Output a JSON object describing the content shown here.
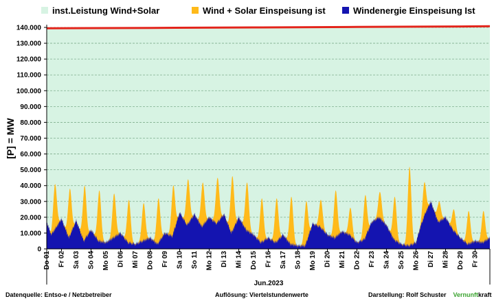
{
  "colors": {
    "installed_fill": "#d7f3e3",
    "installed_line": "#e3241b",
    "wind_solar": "#ffba1a",
    "wind": "#1414b0",
    "grid": "#7fae8e",
    "brand_green": "#3aa32f"
  },
  "legend": [
    {
      "label": "inst.Leistung Wind+Solar",
      "color": "#d7f3e3"
    },
    {
      "label": "Wind + Solar Einspeisung ist",
      "color": "#ffba1a"
    },
    {
      "label": "Windenergie Einspeisung Ist",
      "color": "#1414b0"
    }
  ],
  "footer": {
    "source": "Datenquelle:  Entso-e  / Netzbetreiber",
    "resolution": "Auflösung: Viertelstundenwerte",
    "author": "Darstellung:  Rolf Schuster",
    "brand_a": "Vernunft",
    "brand_b": "kraft"
  },
  "chart_data": {
    "type": "area",
    "ylabel": "[P] =  MW",
    "xlabel": "Jun.2023",
    "ylim": [
      0,
      140000
    ],
    "yticks": [
      0,
      10000,
      20000,
      30000,
      40000,
      50000,
      60000,
      70000,
      80000,
      90000,
      100000,
      110000,
      120000,
      130000,
      140000
    ],
    "ytick_labels": [
      "0",
      "10.000",
      "20.000",
      "30.000",
      "40.000",
      "50.000",
      "60.000",
      "70.000",
      "80.000",
      "90.000",
      "100.000",
      "110.000",
      "120.000",
      "130.000",
      "140.000"
    ],
    "xlim_days": [
      1,
      31
    ],
    "day_labels": [
      {
        "day": 1,
        "label": "Do 01"
      },
      {
        "day": 2,
        "label": "Fr 02"
      },
      {
        "day": 3,
        "label": "Sa 03"
      },
      {
        "day": 4,
        "label": "So 04"
      },
      {
        "day": 5,
        "label": "Mo 05"
      },
      {
        "day": 6,
        "label": "Di 06"
      },
      {
        "day": 7,
        "label": "Mi 07"
      },
      {
        "day": 8,
        "label": "Do 08"
      },
      {
        "day": 9,
        "label": "Fr 09"
      },
      {
        "day": 10,
        "label": "Sa 10"
      },
      {
        "day": 11,
        "label": "So 11"
      },
      {
        "day": 12,
        "label": "Mo 12"
      },
      {
        "day": 13,
        "label": "Di 13"
      },
      {
        "day": 14,
        "label": "Mi 14"
      },
      {
        "day": 15,
        "label": "Do 15"
      },
      {
        "day": 16,
        "label": "Fr 16"
      },
      {
        "day": 17,
        "label": "Sa 17"
      },
      {
        "day": 18,
        "label": "So 18"
      },
      {
        "day": 19,
        "label": "Mo 19"
      },
      {
        "day": 20,
        "label": "Di 20"
      },
      {
        "day": 21,
        "label": "Mi 21"
      },
      {
        "day": 22,
        "label": "Do 22"
      },
      {
        "day": 23,
        "label": "Fr 23"
      },
      {
        "day": 24,
        "label": "Sa 24"
      },
      {
        "day": 25,
        "label": "So 25"
      },
      {
        "day": 26,
        "label": "Mo 26"
      },
      {
        "day": 27,
        "label": "Di 27"
      },
      {
        "day": 28,
        "label": "Mi 28"
      },
      {
        "day": 29,
        "label": "Do 29"
      },
      {
        "day": 30,
        "label": "Fr 30"
      }
    ],
    "series": [
      {
        "name": "inst.Leistung Wind+Solar",
        "type": "area-with-line",
        "x_days": [
          1,
          8,
          15,
          22,
          29,
          31
        ],
        "values": [
          139500,
          139700,
          140000,
          140300,
          140600,
          140800
        ]
      },
      {
        "name": "Wind + Solar Einspeisung ist",
        "daily_peak_hour": 13.5,
        "daily_peaks": [
          41000,
          38000,
          40000,
          37000,
          35000,
          31000,
          29000,
          32000,
          40000,
          44000,
          42000,
          45000,
          46000,
          42000,
          32000,
          32000,
          33000,
          30000,
          31000,
          37000,
          26000,
          34000,
          36000,
          33000,
          52000,
          42000,
          30000,
          25000,
          24000,
          24000
        ]
      },
      {
        "name": "Windenergie Einspeisung Ist",
        "x_days": [
          1.0,
          1.3,
          1.6,
          2.0,
          2.5,
          3.0,
          3.5,
          4.0,
          4.5,
          5.0,
          5.5,
          6.0,
          6.5,
          7.0,
          7.5,
          8.0,
          8.5,
          9.0,
          9.5,
          10.0,
          10.5,
          11.0,
          11.5,
          12.0,
          12.5,
          13.0,
          13.5,
          14.0,
          14.5,
          15.0,
          15.5,
          16.0,
          16.5,
          17.0,
          17.5,
          18.0,
          18.5,
          19.0,
          19.5,
          20.0,
          20.5,
          21.0,
          21.5,
          22.0,
          22.5,
          23.0,
          23.5,
          24.0,
          24.5,
          25.0,
          25.5,
          26.0,
          26.3,
          26.6,
          27.0,
          27.5,
          28.0,
          28.5,
          29.0,
          29.5,
          30.0,
          30.5,
          31.0
        ],
        "values": [
          17000,
          9000,
          13000,
          19000,
          7000,
          18000,
          5000,
          12000,
          5000,
          4000,
          7000,
          10000,
          4000,
          3000,
          5000,
          7000,
          3000,
          10000,
          8000,
          23000,
          15000,
          22000,
          14000,
          20000,
          16000,
          22000,
          10000,
          20000,
          12000,
          9000,
          4000,
          7000,
          4000,
          9000,
          3000,
          2000,
          2000,
          16000,
          14000,
          9000,
          7000,
          11000,
          9000,
          4000,
          6000,
          17000,
          20000,
          15000,
          6000,
          3000,
          2000,
          4000,
          14000,
          22000,
          30000,
          17000,
          20000,
          12000,
          7000,
          3000,
          5000,
          4000,
          7000
        ]
      }
    ]
  }
}
